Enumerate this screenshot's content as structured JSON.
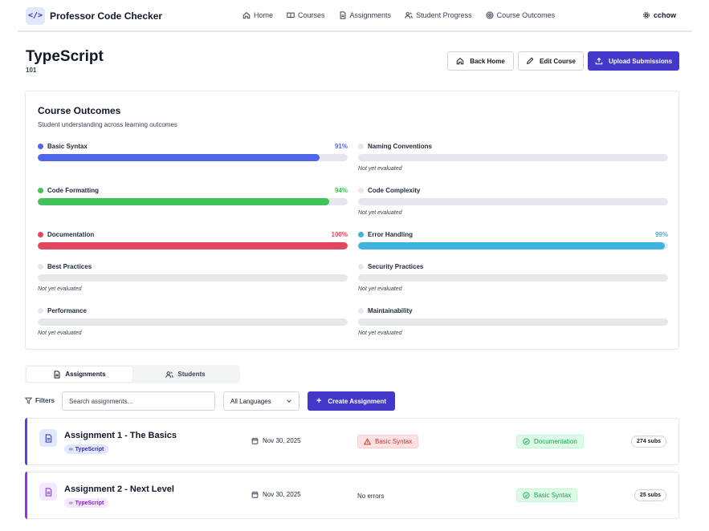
{
  "app": {
    "logo_glyph": "</>",
    "name": "Professor Code Checker"
  },
  "nav": {
    "items": [
      {
        "label": "Home",
        "icon": "home-icon"
      },
      {
        "label": "Courses",
        "icon": "book-icon"
      },
      {
        "label": "Assignments",
        "icon": "file-icon"
      },
      {
        "label": "Student Progress",
        "icon": "users-icon"
      },
      {
        "label": "Course Outcomes",
        "icon": "target-icon"
      }
    ],
    "user": {
      "label": "cchow",
      "icon": "gear-icon"
    }
  },
  "course": {
    "title": "TypeScript",
    "code": "101"
  },
  "header_buttons": {
    "back_home": "Back Home",
    "edit_course": "Edit Course",
    "upload": "Upload Submissions"
  },
  "outcomes": {
    "title": "Course Outcomes",
    "subtitle": "Student understanding across learning outcomes",
    "items": [
      {
        "name": "Basic Syntax",
        "percent": "91%",
        "value": 0.91,
        "color": "#4f66e8",
        "note": ""
      },
      {
        "name": "Naming Conventions",
        "percent": "",
        "value": 0,
        "color": "#e5e7eb",
        "note": "Not yet evaluated"
      },
      {
        "name": "Code Formatting",
        "percent": "94%",
        "value": 0.94,
        "color": "#3fc25a",
        "note": ""
      },
      {
        "name": "Code Complexity",
        "percent": "",
        "value": 0,
        "color": "#e5e7eb",
        "note": "Not yet evaluated"
      },
      {
        "name": "Documentation",
        "percent": "100%",
        "value": 1.0,
        "color": "#e2475f",
        "note": ""
      },
      {
        "name": "Error Handling",
        "percent": "99%",
        "value": 0.99,
        "color": "#3fb3e0",
        "note": ""
      },
      {
        "name": "Best Practices",
        "percent": "",
        "value": 0,
        "color": "#e5e7eb",
        "note": "Not yet evaluated"
      },
      {
        "name": "Security Practices",
        "percent": "",
        "value": 0,
        "color": "#e5e7eb",
        "note": "Not yet evaluated"
      },
      {
        "name": "Performance",
        "percent": "",
        "value": 0,
        "color": "#e5e7eb",
        "note": "Not yet evaluated"
      },
      {
        "name": "Maintainability",
        "percent": "",
        "value": 0,
        "color": "#e5e7eb",
        "note": "Not yet evaluated"
      }
    ]
  },
  "tabs": {
    "assignments": "Assignments",
    "students": "Students",
    "active": "assignments"
  },
  "filters": {
    "label": "Filters",
    "search_placeholder": "Search assignments...",
    "language": "All Languages",
    "create_label": "Create Assignment"
  },
  "assignments": [
    {
      "title": "Assignment 1 - The Basics",
      "tag": "TypeScript",
      "date": "Nov 30, 2025",
      "errors": "Basic Syntax",
      "strength": "Documentation",
      "subs": "274 subs",
      "accent": "#4f46e5"
    },
    {
      "title": "Assignment 2 - Next Level",
      "tag": "TypeScript",
      "date": "Nov 30, 2025",
      "errors": "No errors",
      "strength": "Basic Syntax",
      "subs": "25 subs",
      "accent": "#9333ea"
    }
  ]
}
